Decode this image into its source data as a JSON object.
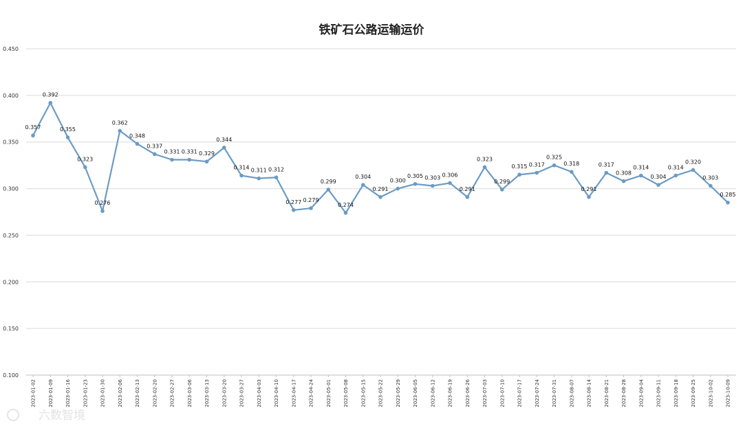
{
  "chart_data": {
    "type": "line",
    "title": "铁矿石公路运输运价",
    "xlabel": "",
    "ylabel": "",
    "ylim": [
      0.1,
      0.45
    ],
    "yticks": [
      "0.100",
      "0.150",
      "0.200",
      "0.250",
      "0.300",
      "0.350",
      "0.400",
      "0.450"
    ],
    "grid": true,
    "legend": "none",
    "line_color": "#6b9bc3",
    "categories": [
      "2023-01-02",
      "2023-01-09",
      "2023-01-16",
      "2023-01-23",
      "2023-01-30",
      "2023-02-06",
      "2023-02-13",
      "2023-02-20",
      "2023-02-27",
      "2023-03-06",
      "2023-03-13",
      "2023-03-20",
      "2023-03-27",
      "2023-04-03",
      "2023-04-10",
      "2023-04-17",
      "2023-04-24",
      "2023-05-01",
      "2023-05-08",
      "2023-05-15",
      "2023-05-22",
      "2023-05-29",
      "2023-06-05",
      "2023-06-12",
      "2023-06-19",
      "2023-06-26",
      "2023-07-03",
      "2023-07-10",
      "2023-07-17",
      "2023-07-24",
      "2023-07-31",
      "2023-08-07",
      "2023-08-14",
      "2023-08-21",
      "2023-08-28",
      "2023-09-04",
      "2023-09-11",
      "2023-09-18",
      "2023-09-25",
      "2023-10-02",
      "2023-10-09"
    ],
    "values": [
      0.357,
      0.392,
      0.355,
      0.323,
      0.276,
      0.362,
      0.348,
      0.337,
      0.331,
      0.331,
      0.329,
      0.344,
      0.314,
      0.311,
      0.312,
      0.277,
      0.279,
      0.299,
      0.274,
      0.304,
      0.291,
      0.3,
      0.305,
      0.303,
      0.306,
      0.291,
      0.323,
      0.299,
      0.315,
      0.317,
      0.325,
      0.318,
      0.291,
      0.317,
      0.308,
      0.314,
      0.304,
      0.314,
      0.32,
      0.303,
      0.285
    ],
    "data_labels": [
      "0.357",
      "0.392",
      "0.355",
      "0.323",
      "0.276",
      "0.362",
      "0.348",
      "0.337",
      "0.331",
      "0.331",
      "0.329",
      "0.344",
      "0.314",
      "0.311",
      "0.312",
      "0.277",
      "0.279",
      "0.299",
      "0.274",
      "0.304",
      "0.291",
      "0.300",
      "0.305",
      "0.303",
      "0.306",
      "0.291",
      "0.323",
      "0.299",
      "0.315",
      "0.317",
      "0.325",
      "0.318",
      "0.291",
      "0.317",
      "0.308",
      "0.314",
      "0.304",
      "0.314",
      "0.320",
      "0.303",
      "0.285"
    ]
  },
  "watermark": "六数智境"
}
